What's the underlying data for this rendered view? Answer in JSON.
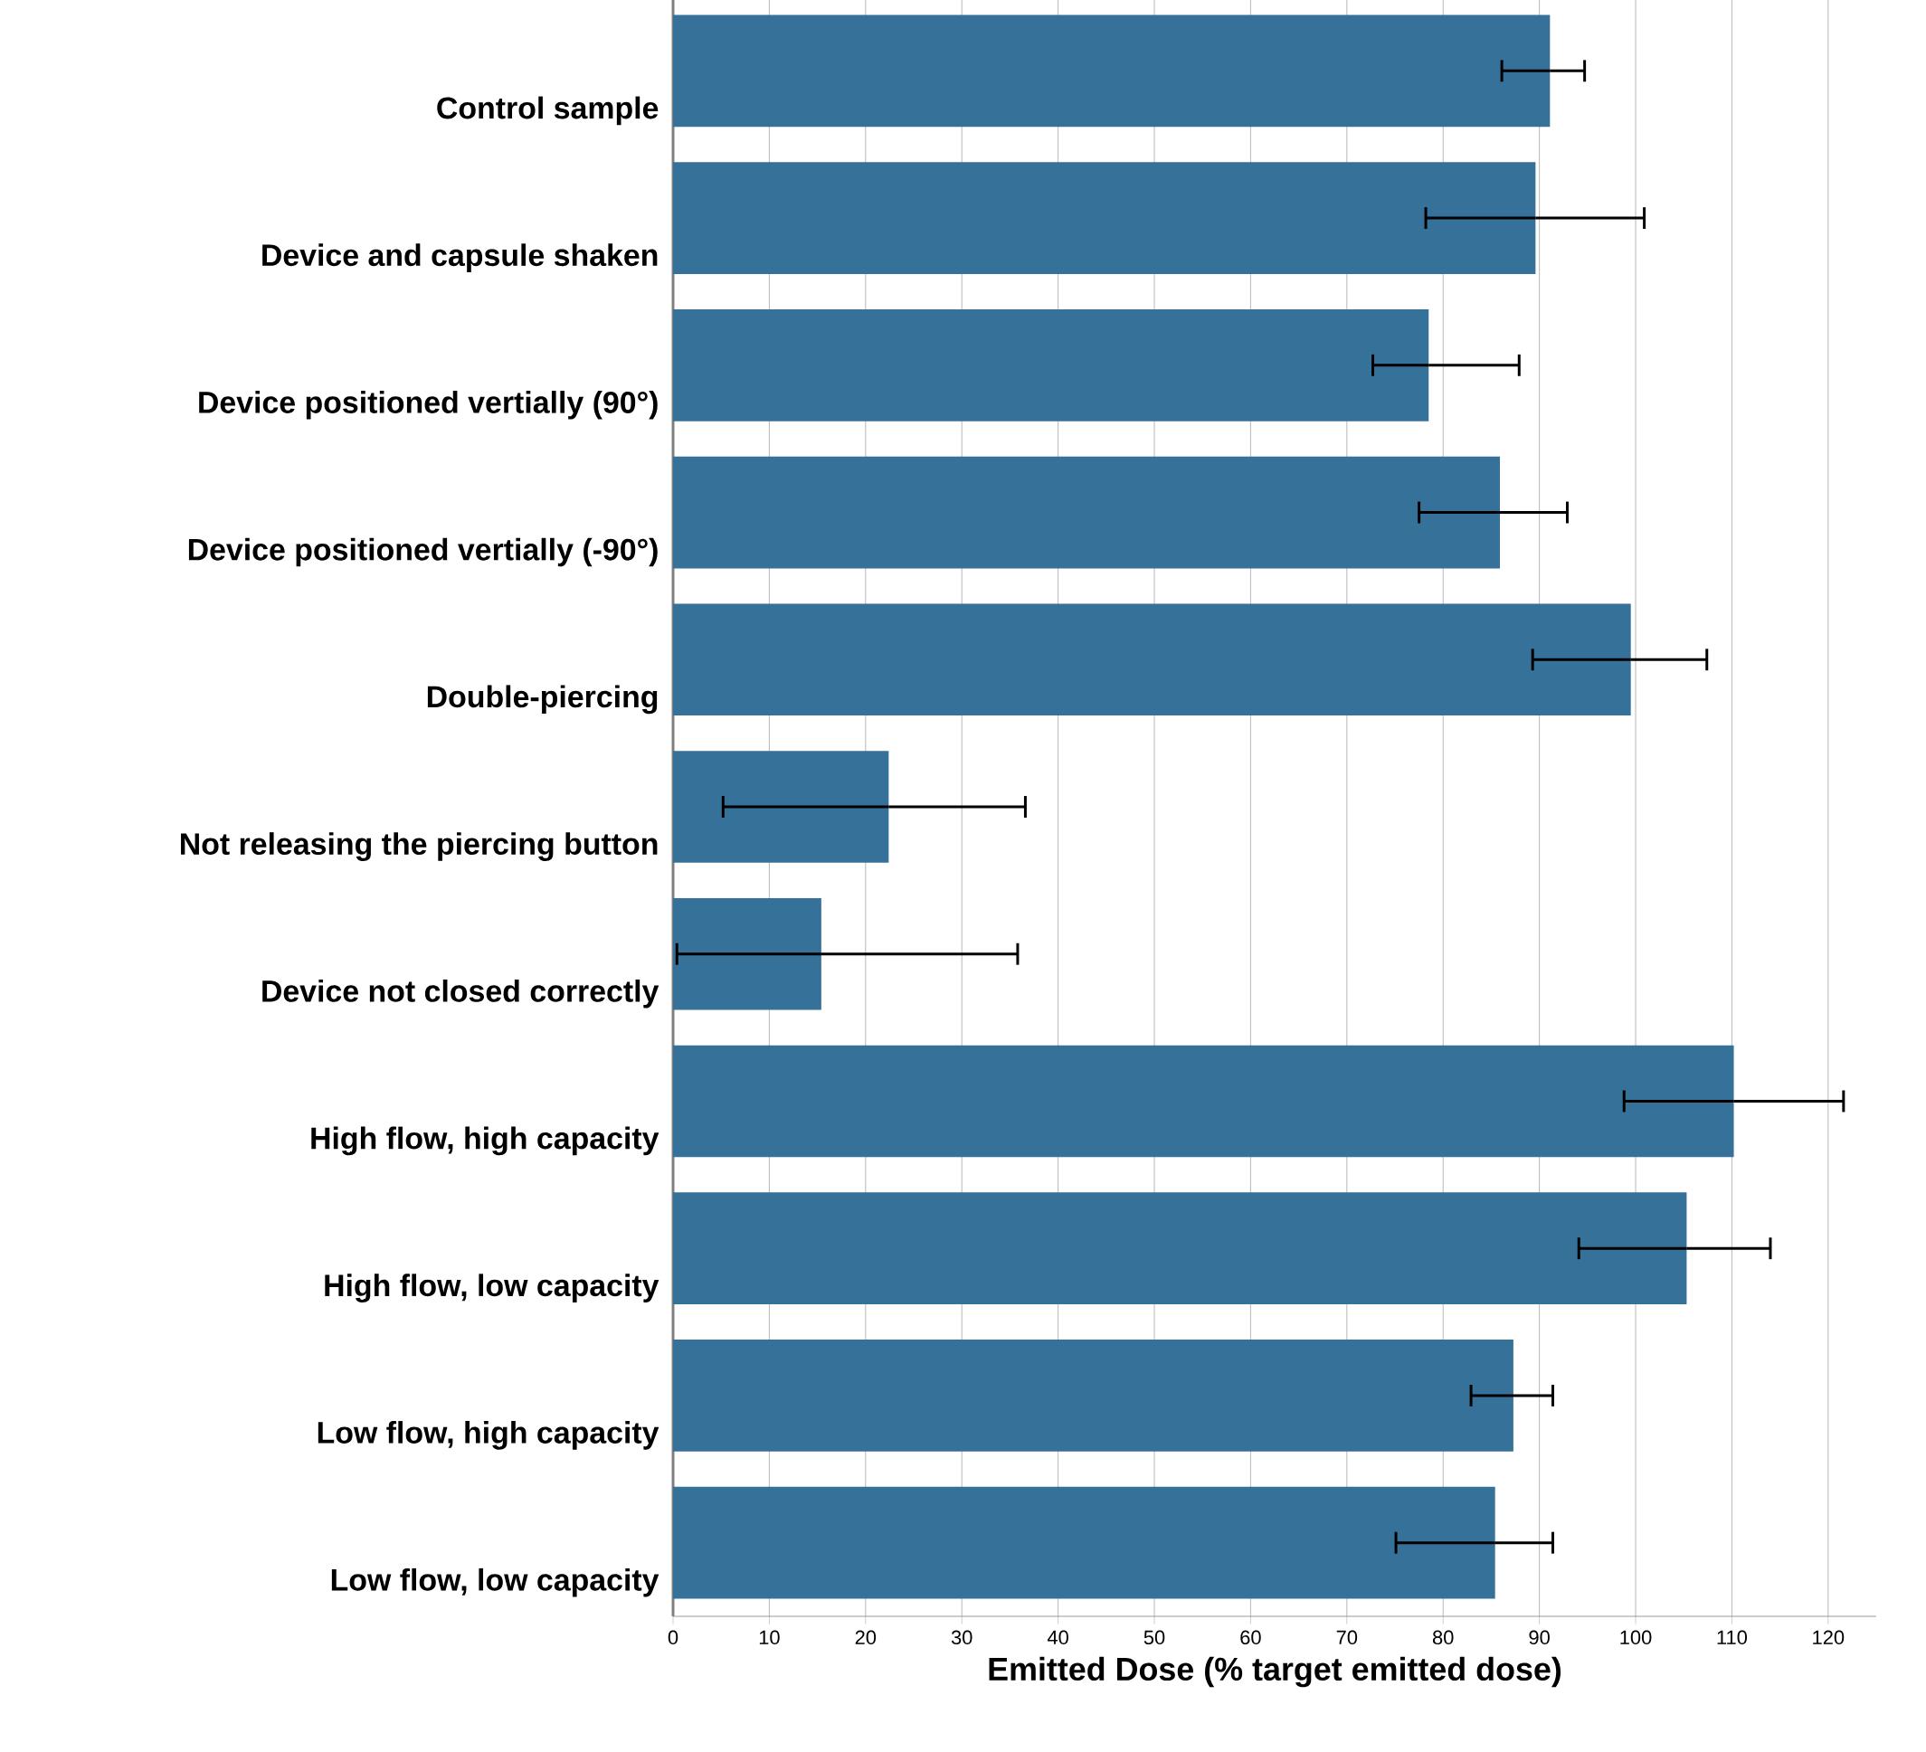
{
  "chart_data": {
    "type": "bar",
    "orientation": "horizontal",
    "xlabel": "Emitted Dose (% target emitted dose)",
    "categories": [
      "Control sample",
      "Device and capsule shaken",
      "Device positioned vertially (90°)",
      "Device positioned vertially (-90°)",
      "Double-piercing",
      "Not releasing the piercing button",
      "Device not closed correctly",
      "High flow, high capacity",
      "High flow, low capacity",
      "Low flow, high capacity",
      "Low flow, low capacity"
    ],
    "values": [
      91.1,
      89.6,
      78.5,
      85.9,
      99.5,
      22.4,
      15.4,
      110.2,
      105.3,
      87.3,
      85.4
    ],
    "errors": [
      [
        86.1,
        94.7
      ],
      [
        78.2,
        100.9
      ],
      [
        72.7,
        87.9
      ],
      [
        77.5,
        92.9
      ],
      [
        89.3,
        107.4
      ],
      [
        5.2,
        36.6
      ],
      [
        0.4,
        35.8
      ],
      [
        98.8,
        121.6
      ],
      [
        94.1,
        114.0
      ],
      [
        82.9,
        91.4
      ],
      [
        75.1,
        91.4
      ]
    ],
    "color": "#36719a",
    "xlim": [
      0,
      125
    ],
    "xticks": [
      0,
      10,
      20,
      30,
      40,
      50,
      60,
      70,
      80,
      90,
      100,
      110,
      120
    ],
    "grid": "x"
  }
}
